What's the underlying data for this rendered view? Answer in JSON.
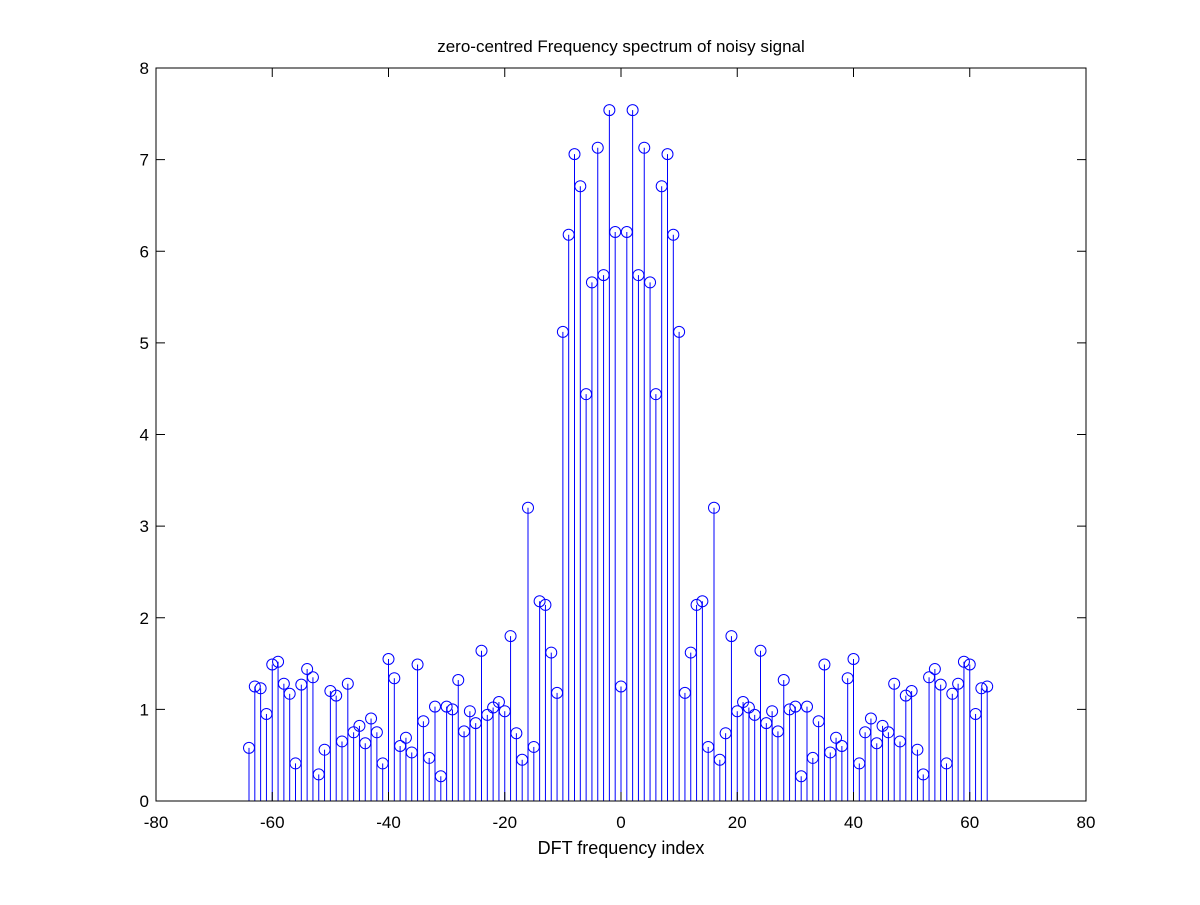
{
  "figure": {
    "background": "#ffffff"
  },
  "chart_data": {
    "type": "stem",
    "title": "zero-centred Frequency spectrum of noisy signal",
    "xlabel": "DFT frequency index",
    "ylabel": "",
    "xlim": [
      -80,
      80
    ],
    "ylim": [
      0,
      8
    ],
    "xticks": [
      -80,
      -60,
      -40,
      -20,
      0,
      20,
      40,
      60,
      80
    ],
    "yticks": [
      0,
      1,
      2,
      3,
      4,
      5,
      6,
      7,
      8
    ],
    "grid": false,
    "color": "#0000ff",
    "marker": "circle-open",
    "x": [
      -64,
      -63,
      -62,
      -61,
      -60,
      -59,
      -58,
      -57,
      -56,
      -55,
      -54,
      -53,
      -52,
      -51,
      -50,
      -49,
      -48,
      -47,
      -46,
      -45,
      -44,
      -43,
      -42,
      -41,
      -40,
      -39,
      -38,
      -37,
      -36,
      -35,
      -34,
      -33,
      -32,
      -31,
      -30,
      -29,
      -28,
      -27,
      -26,
      -25,
      -24,
      -23,
      -22,
      -21,
      -20,
      -19,
      -18,
      -17,
      -16,
      -15,
      -14,
      -13,
      -12,
      -11,
      -10,
      -9,
      -8,
      -7,
      -6,
      -5,
      -4,
      -3,
      -2,
      -1,
      0,
      1,
      2,
      3,
      4,
      5,
      6,
      7,
      8,
      9,
      10,
      11,
      12,
      13,
      14,
      15,
      16,
      17,
      18,
      19,
      20,
      21,
      22,
      23,
      24,
      25,
      26,
      27,
      28,
      29,
      30,
      31,
      32,
      33,
      34,
      35,
      36,
      37,
      38,
      39,
      40,
      41,
      42,
      43,
      44,
      45,
      46,
      47,
      48,
      49,
      50,
      51,
      52,
      53,
      54,
      55,
      56,
      57,
      58,
      59,
      60,
      61,
      62,
      63
    ],
    "y": [
      0.58,
      1.25,
      1.23,
      0.95,
      1.49,
      1.52,
      1.28,
      1.17,
      0.41,
      1.27,
      1.44,
      1.35,
      0.29,
      0.56,
      1.2,
      1.15,
      0.65,
      1.28,
      0.75,
      0.82,
      0.63,
      0.9,
      0.75,
      0.41,
      1.55,
      1.34,
      0.6,
      0.69,
      0.53,
      1.49,
      0.87,
      0.47,
      1.03,
      0.27,
      1.03,
      1.0,
      1.32,
      0.76,
      0.98,
      0.85,
      1.64,
      0.94,
      1.02,
      1.08,
      0.98,
      1.8,
      0.74,
      0.45,
      3.2,
      0.59,
      2.18,
      2.14,
      1.62,
      1.18,
      5.12,
      6.18,
      7.06,
      6.71,
      4.44,
      5.66,
      7.13,
      5.74,
      7.54,
      6.21,
      1.25,
      6.21,
      7.54,
      5.74,
      7.13,
      5.66,
      4.44,
      6.71,
      7.06,
      6.18,
      5.12,
      1.18,
      1.62,
      2.14,
      2.18,
      0.59,
      3.2,
      0.45,
      0.74,
      1.8,
      0.98,
      1.08,
      1.02,
      0.94,
      1.64,
      0.85,
      0.98,
      0.76,
      1.32,
      1.0,
      1.03,
      0.27,
      1.03,
      0.47,
      0.87,
      1.49,
      0.53,
      0.69,
      0.6,
      1.34,
      1.55,
      0.41,
      0.75,
      0.9,
      0.63,
      0.82,
      0.75,
      1.28,
      0.65,
      1.15,
      1.2,
      0.56,
      0.29,
      1.35,
      1.44,
      1.27,
      0.41,
      1.17,
      1.28,
      1.52,
      1.49,
      0.95,
      1.23,
      1.25
    ]
  }
}
